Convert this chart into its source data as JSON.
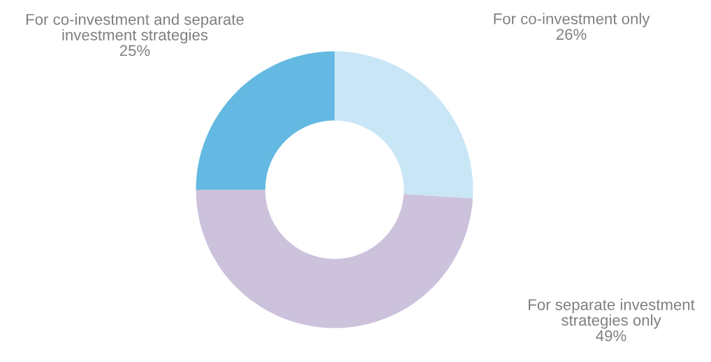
{
  "chart_data": {
    "type": "donut",
    "categories": [
      "For co-investment only",
      "For separate investment strategies only",
      "For co-investment and separate investment strategies"
    ],
    "values": [
      26,
      49,
      25
    ],
    "colors": [
      "#c9e6f6",
      "#ccc2dc",
      "#63b9e1"
    ],
    "value_labels": [
      "26%",
      "49%",
      "25%"
    ],
    "legend": false
  }
}
